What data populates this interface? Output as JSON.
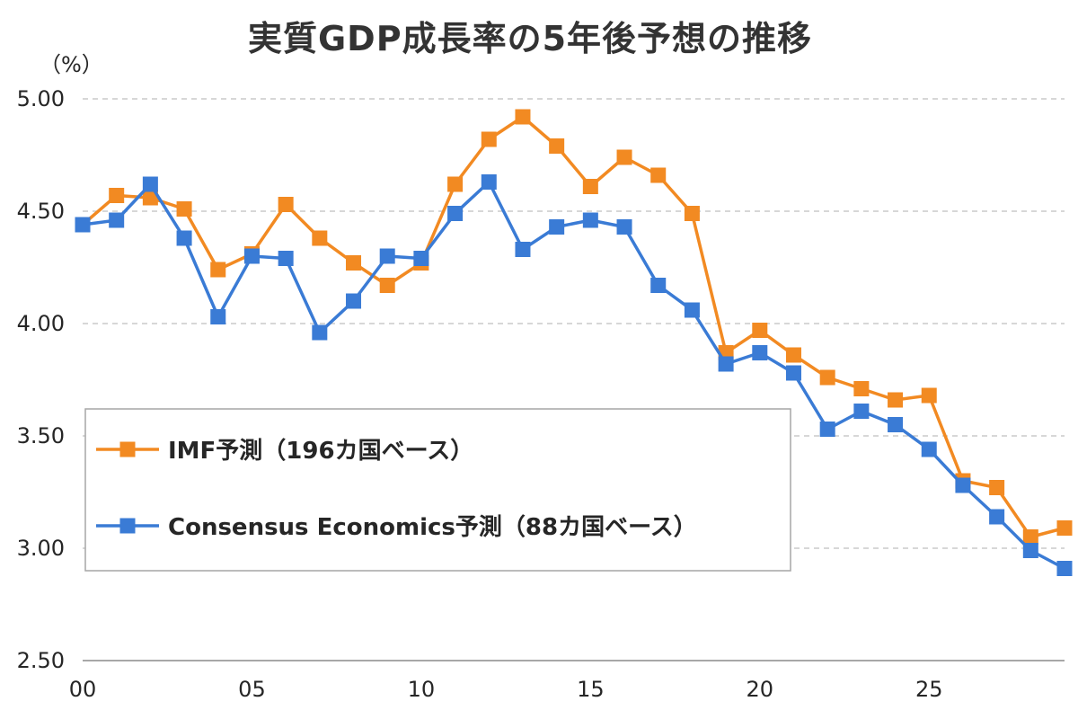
{
  "chart_data": {
    "type": "line",
    "title": "実質GDP成長率の5年後予想の推移",
    "ylabel": "（%）",
    "xlabel": "",
    "ylim": [
      2.5,
      5.0
    ],
    "yticks": [
      "2.50",
      "3.00",
      "3.50",
      "4.00",
      "4.50",
      "5.00"
    ],
    "x": [
      0,
      1,
      2,
      3,
      4,
      5,
      6,
      7,
      8,
      9,
      10,
      11,
      12,
      13,
      14,
      15,
      16,
      17,
      18,
      19,
      20,
      21,
      22,
      23,
      24,
      25,
      26,
      27,
      28,
      29
    ],
    "xticks": [
      {
        "x": 0,
        "label": "00"
      },
      {
        "x": 5,
        "label": "05"
      },
      {
        "x": 10,
        "label": "10"
      },
      {
        "x": 15,
        "label": "15"
      },
      {
        "x": 20,
        "label": "20"
      },
      {
        "x": 25,
        "label": "25"
      }
    ],
    "grid": true,
    "legend_position": "lower-left",
    "series": [
      {
        "name": "IMF予測（196カ国ベース）",
        "color": "#f28a22",
        "marker": "square",
        "values": [
          4.44,
          4.57,
          4.56,
          4.51,
          4.24,
          4.31,
          4.53,
          4.38,
          4.27,
          4.17,
          4.27,
          4.62,
          4.82,
          4.92,
          4.79,
          4.61,
          4.74,
          4.66,
          4.49,
          3.87,
          3.97,
          3.86,
          3.76,
          3.71,
          3.66,
          3.68,
          3.3,
          3.27,
          3.05,
          3.09
        ]
      },
      {
        "name": "Consensus Economics予測（88カ国ベース）",
        "color": "#3a7bd5",
        "marker": "square",
        "values": [
          4.44,
          4.46,
          4.62,
          4.38,
          4.03,
          4.3,
          4.29,
          3.96,
          4.1,
          4.3,
          4.29,
          4.49,
          4.63,
          4.33,
          4.43,
          4.46,
          4.43,
          4.17,
          4.06,
          3.82,
          3.87,
          3.78,
          3.53,
          3.61,
          3.55,
          3.44,
          3.28,
          3.14,
          2.99,
          2.91
        ]
      }
    ]
  }
}
